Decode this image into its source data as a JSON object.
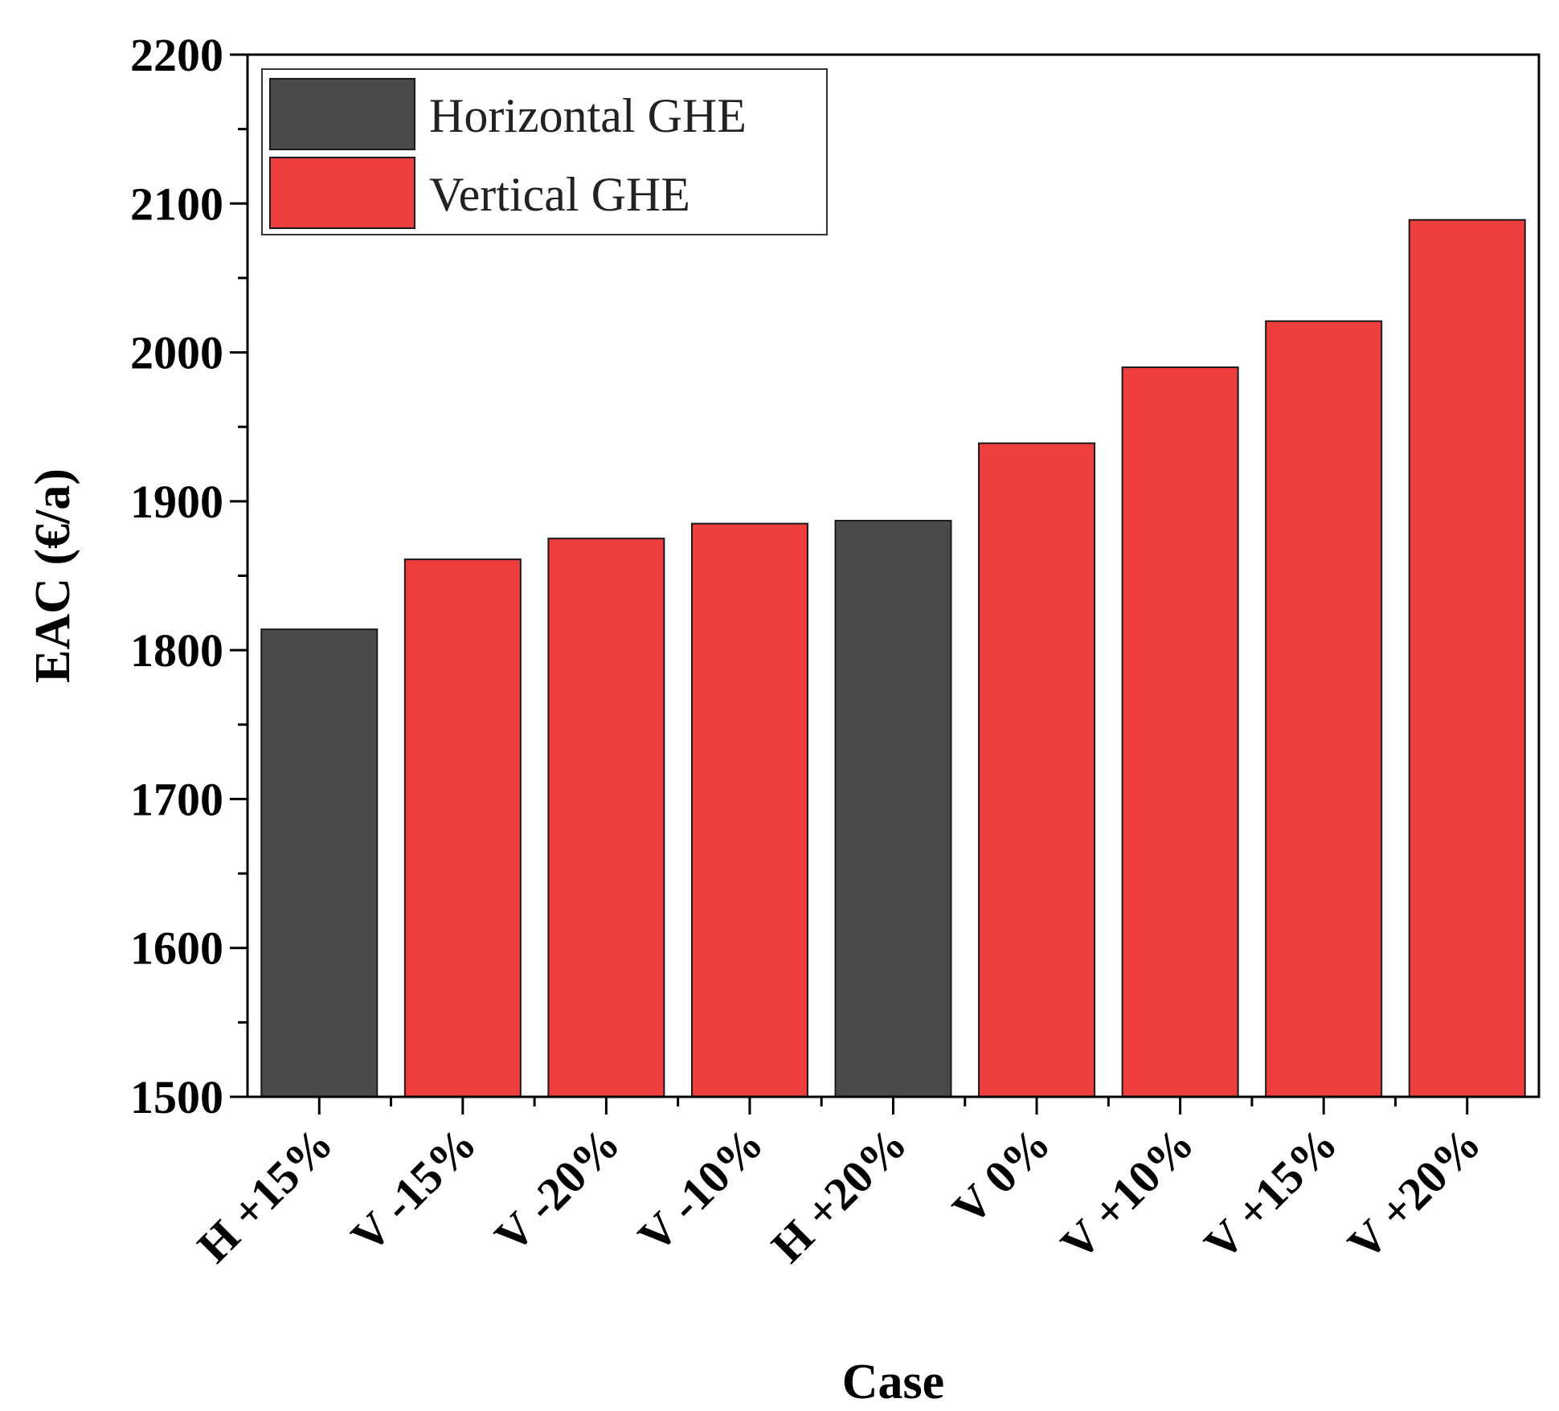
{
  "chart_data": {
    "type": "bar",
    "title": "",
    "xlabel": "Case",
    "ylabel": "EAC (€/a)",
    "ylim": [
      1500,
      2200
    ],
    "yticks": [
      1500,
      1600,
      1700,
      1800,
      1900,
      2000,
      2100,
      2200
    ],
    "grid": false,
    "legend_position": "top-left",
    "categories": [
      "H +15%",
      "V -15%",
      "V -20%",
      "V -10%",
      "H +20%",
      "V 0%",
      "V +10%",
      "V +15%",
      "V +20%"
    ],
    "values": [
      1814,
      1861,
      1875,
      1885,
      1887,
      1939,
      1990,
      2021,
      2089
    ],
    "groups": [
      "Horizontal GHE",
      "Vertical GHE",
      "Vertical GHE",
      "Vertical GHE",
      "Horizontal GHE",
      "Vertical GHE",
      "Vertical GHE",
      "Vertical GHE",
      "Vertical GHE"
    ],
    "series": [
      {
        "name": "Horizontal GHE",
        "color": "#4a4a4a"
      },
      {
        "name": "Vertical GHE",
        "color": "#ef3e3e"
      }
    ]
  }
}
